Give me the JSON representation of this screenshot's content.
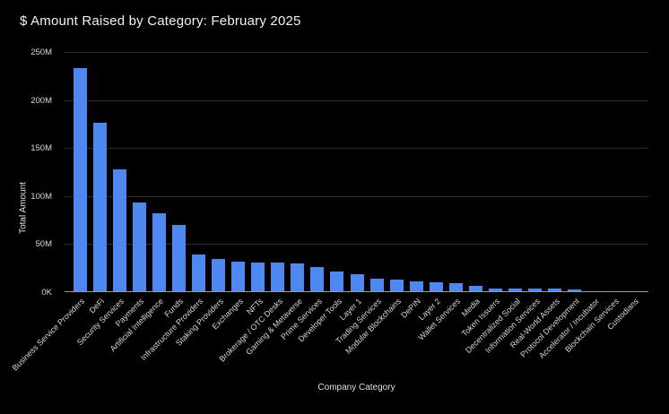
{
  "page": {
    "background": "#000000"
  },
  "colors": {
    "bar": "#4e87ef",
    "gridline": "#2e2e2e",
    "axis_line": "#9a9a9a",
    "title_text": "#f2f2f2",
    "tick_text": "#d8d8d8",
    "axis_label_text": "#e0e0e0"
  },
  "chart_data": {
    "type": "bar",
    "title": "$ Amount Raised by Category: February 2025",
    "xlabel": "Company Category",
    "ylabel": "Total Amount",
    "ylim": [
      0,
      250
    ],
    "unit": "M USD",
    "grid": true,
    "legend": false,
    "bar_color": "#4e87ef",
    "categories": [
      "Business Service Providers",
      "DeFi",
      "Security Services",
      "Payments",
      "Artificial Intelligence",
      "Funds",
      "Infrastructure Providers",
      "Staking Providers",
      "Exchanges",
      "NFTs",
      "Brokerage / OTC Desks",
      "Gaming & Metaverse",
      "Prime Services",
      "Developer Tools",
      "Layer 1",
      "Trading Services",
      "Modular Blockchains",
      "DePIN",
      "Layer 2",
      "Wallet Services",
      "Media",
      "Token Issuers",
      "Decentralized Social",
      "Information Services",
      "Real-World Assets",
      "Protocol Development",
      "Accelerator / Incubator",
      "Blockchain Services",
      "Custodians"
    ],
    "values": [
      232,
      175,
      127,
      92,
      81,
      69,
      38,
      34,
      31,
      30,
      30,
      29,
      25,
      21,
      18,
      13,
      12,
      10,
      9.5,
      8.5,
      6,
      3,
      2.5,
      2.5,
      2.5,
      1.7,
      0.4,
      0.3,
      0.2
    ],
    "yticks": [
      {
        "value": 0,
        "label": "0K"
      },
      {
        "value": 50,
        "label": "50M"
      },
      {
        "value": 100,
        "label": "100M"
      },
      {
        "value": 150,
        "label": "150M"
      },
      {
        "value": 200,
        "label": "200M"
      },
      {
        "value": 250,
        "label": "250M"
      }
    ]
  }
}
